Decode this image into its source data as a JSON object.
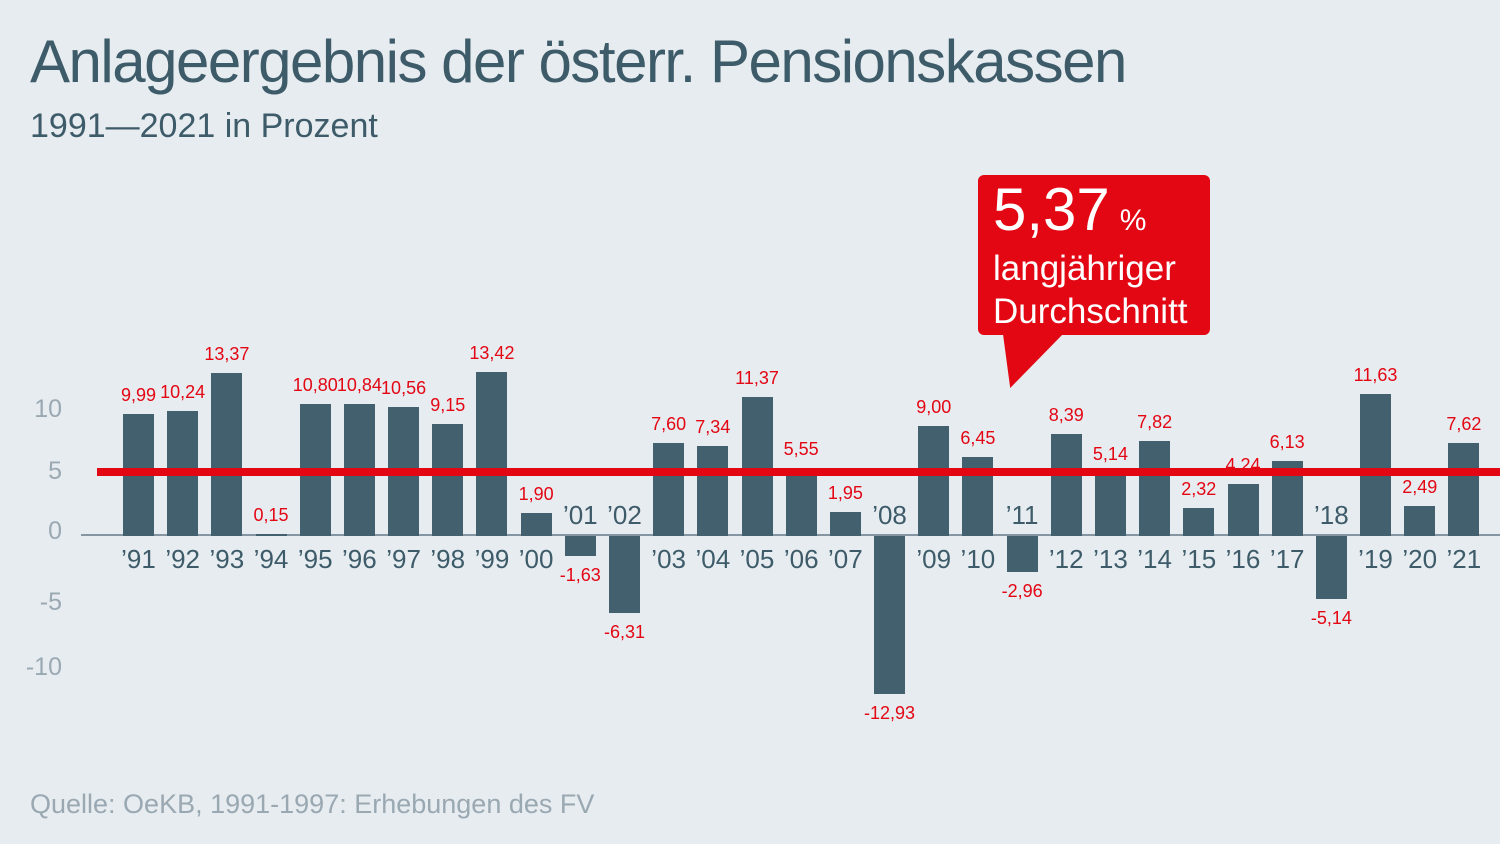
{
  "page": {
    "title": "Anlageergebnis der österr. Pensionskassen",
    "subtitle": "1991—2021 in Prozent",
    "source": "Quelle: OeKB, 1991-1997: Erhebungen des FV"
  },
  "callout": {
    "value": "5,37",
    "unit": "%",
    "line1": "langjähriger",
    "line2": "Durchschnitt"
  },
  "y_axis": {
    "tick_labels": [
      "10",
      "5",
      "0",
      "-5",
      "-10"
    ],
    "tick_values": [
      10,
      5,
      0,
      -5,
      -10
    ]
  },
  "average_line": {
    "value": 5.37,
    "label": "5,37 % langjähriger Durchschnitt"
  },
  "colors": {
    "background": "#e7ecf0",
    "bar": "#42606e",
    "accent_red": "#e30613",
    "heading_text": "#3d5b69",
    "axis_text": "#9aa8b2",
    "axis_line": "#8596a2",
    "source_text": "#9aa8b2",
    "callout_text": "#ffffff",
    "value_label_text": "#e30613"
  },
  "chart_data": {
    "type": "bar",
    "title": "Anlageergebnis der österr. Pensionskassen",
    "subtitle": "1991—2021 in Prozent",
    "xlabel": "",
    "ylabel": "Prozent",
    "ylim": [
      -14,
      15
    ],
    "grid": false,
    "legend": false,
    "average_reference_line": 5.37,
    "categories": [
      "’91",
      "’92",
      "’93",
      "’94",
      "’95",
      "’96",
      "’97",
      "’98",
      "’99",
      "’00",
      "’01",
      "’02",
      "’03",
      "’04",
      "’05",
      "’06",
      "’07",
      "’08",
      "’09",
      "’10",
      "’11",
      "’12",
      "’13",
      "’14",
      "’15",
      "’16",
      "’17",
      "’18",
      "’19",
      "’20",
      "’21"
    ],
    "values": [
      9.99,
      10.24,
      13.37,
      0.15,
      10.8,
      10.84,
      10.56,
      9.15,
      13.42,
      1.9,
      -1.63,
      -6.31,
      7.6,
      7.34,
      11.37,
      5.55,
      1.95,
      -12.93,
      9.0,
      6.45,
      -2.96,
      8.39,
      5.14,
      7.82,
      2.32,
      4.24,
      6.13,
      -5.14,
      11.63,
      2.49,
      7.62
    ],
    "value_labels": [
      "9,99",
      "10,24",
      "13,37",
      "0,15",
      "10,80",
      "10,84",
      "10,56",
      "9,15",
      "13,42",
      "1,90",
      "-1,63",
      "-6,31",
      "7,60",
      "7,34",
      "11,37",
      "5,55",
      "1,95",
      "-12,93",
      "9,00",
      "6,45",
      "-2,96",
      "8,39",
      "5,14",
      "7,82",
      "2,32",
      "4,24",
      "6,13",
      "-5,14",
      "11,63",
      "2,49",
      "7,62"
    ]
  }
}
